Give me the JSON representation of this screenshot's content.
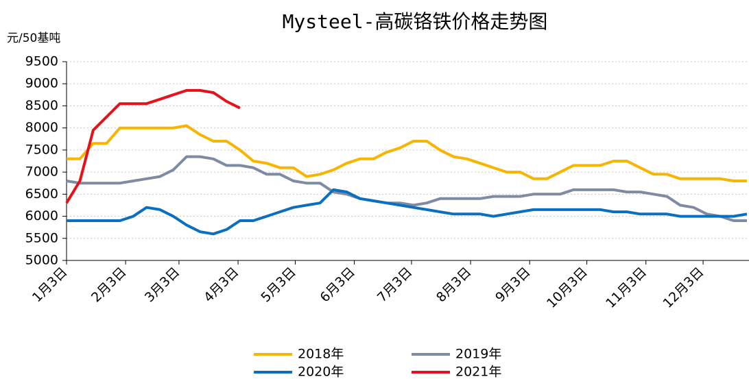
{
  "chart_data": {
    "type": "line",
    "title": "Mysteel-高碳铬铁价格走势图",
    "y_label": "元/50基吨",
    "x": [
      "1月3日",
      "1月10日",
      "1月17日",
      "1月24日",
      "1月31日",
      "2月7日",
      "2月14日",
      "2月21日",
      "2月28日",
      "3月7日",
      "3月14日",
      "3月21日",
      "3月28日",
      "4月4日",
      "4月11日",
      "4月18日",
      "4月25日",
      "5月2日",
      "5月9日",
      "5月16日",
      "5月23日",
      "5月30日",
      "6月6日",
      "6月13日",
      "6月20日",
      "6月27日",
      "7月4日",
      "7月11日",
      "7月18日",
      "7月25日",
      "8月1日",
      "8月8日",
      "8月15日",
      "8月22日",
      "8月29日",
      "9月5日",
      "9月12日",
      "9月19日",
      "9月26日",
      "10月3日",
      "10月10日",
      "10月17日",
      "10月24日",
      "10月31日",
      "11月7日",
      "11月14日",
      "11月21日",
      "11月28日",
      "12月5日",
      "12月12日",
      "12月19日",
      "12月26日"
    ],
    "xlim": [
      "1月3日",
      "12月26日"
    ],
    "xticks": [
      "1月3日",
      "2月3日",
      "3月3日",
      "4月3日",
      "5月3日",
      "6月3日",
      "7月3日",
      "8月3日",
      "9月3日",
      "10月3日",
      "11月3日",
      "12月3日"
    ],
    "ylim": [
      5000,
      9500
    ],
    "yticks": [
      5000,
      5500,
      6000,
      6500,
      7000,
      7500,
      8000,
      8500,
      9000,
      9500
    ],
    "grid": true,
    "legend": "bottom",
    "series": [
      {
        "name": "2018年",
        "color": "#f7b500",
        "values": [
          7300,
          7300,
          7650,
          7650,
          8000,
          8000,
          8000,
          8000,
          8000,
          8050,
          7850,
          7700,
          7700,
          7500,
          7250,
          7200,
          7100,
          7100,
          6900,
          6950,
          7050,
          7200,
          7300,
          7300,
          7450,
          7550,
          7700,
          7700,
          7500,
          7350,
          7300,
          7200,
          7100,
          7000,
          7000,
          6850,
          6850,
          7000,
          7150,
          7150,
          7150,
          7250,
          7250,
          7100,
          6950,
          6950,
          6850,
          6850,
          6850,
          6850,
          6800,
          6800
        ]
      },
      {
        "name": "2019年",
        "color": "#7f8aa3",
        "values": [
          6800,
          6750,
          6750,
          6750,
          6750,
          6800,
          6850,
          6900,
          7050,
          7350,
          7350,
          7300,
          7150,
          7150,
          7100,
          6950,
          6950,
          6800,
          6750,
          6750,
          6550,
          6500,
          6400,
          6350,
          6300,
          6300,
          6250,
          6300,
          6400,
          6400,
          6400,
          6400,
          6450,
          6450,
          6450,
          6500,
          6500,
          6500,
          6600,
          6600,
          6600,
          6600,
          6550,
          6550,
          6500,
          6450,
          6250,
          6200,
          6050,
          6000,
          5900,
          5900
        ]
      },
      {
        "name": "2020年",
        "color": "#0a6fbe",
        "values": [
          5900,
          5900,
          5900,
          5900,
          5900,
          6000,
          6200,
          6150,
          6000,
          5800,
          5650,
          5600,
          5700,
          5900,
          5900,
          6000,
          6100,
          6200,
          6250,
          6300,
          6600,
          6550,
          6400,
          6350,
          6300,
          6250,
          6200,
          6150,
          6100,
          6050,
          6050,
          6050,
          6000,
          6050,
          6100,
          6150,
          6150,
          6150,
          6150,
          6150,
          6150,
          6100,
          6100,
          6050,
          6050,
          6050,
          6000,
          6000,
          6000,
          6000,
          6000,
          6050
        ]
      },
      {
        "name": "2021年",
        "color": "#e8111b",
        "values": [
          6300,
          6800,
          7950,
          8250,
          8550,
          8550,
          8550,
          8650,
          8750,
          8850,
          8850,
          8800,
          8600,
          8450,
          null,
          null,
          null,
          null,
          null,
          null,
          null,
          null,
          null,
          null,
          null,
          null,
          null,
          null,
          null,
          null,
          null,
          null,
          null,
          null,
          null,
          null,
          null,
          null,
          null,
          null,
          null,
          null,
          null,
          null,
          null,
          null,
          null,
          null,
          null,
          null,
          null,
          null
        ]
      }
    ]
  }
}
